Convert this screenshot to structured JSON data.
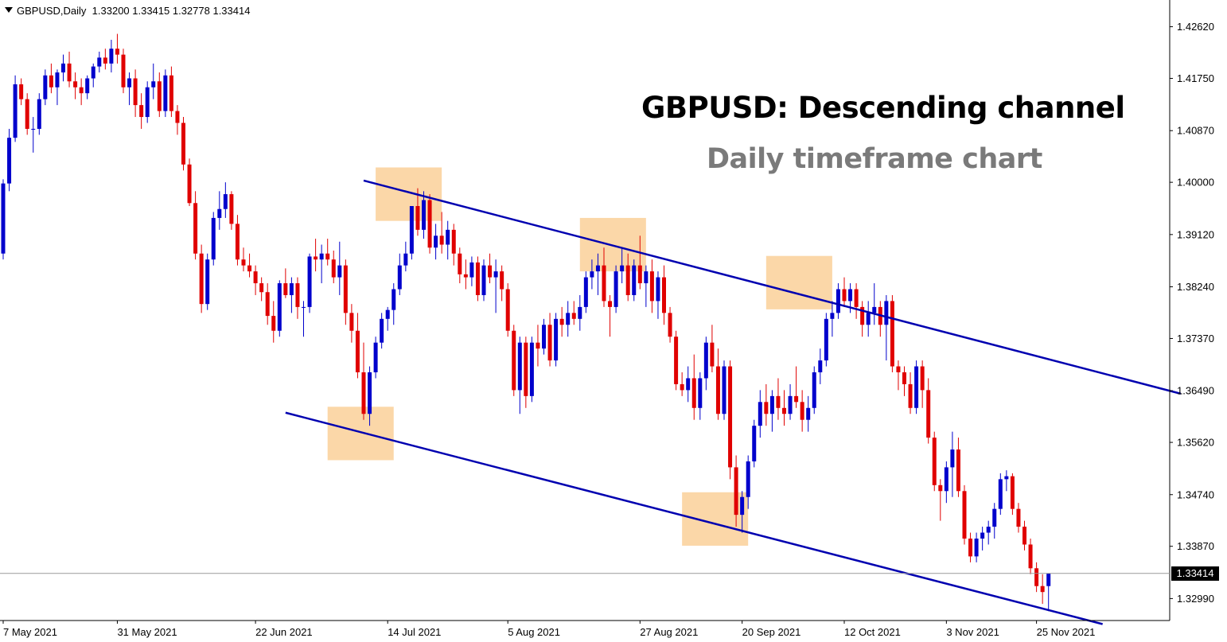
{
  "header": {
    "dropdown_icon": "triangle-down-icon",
    "symbol": "GBPUSD,Daily",
    "ohlc": "1.33200 1.33415 1.32778 1.33414"
  },
  "annotation": {
    "title": "GBPUSD: Descending channel",
    "subtitle": "Daily timeframe chart"
  },
  "current_price_label": "1.33414",
  "colors": {
    "bull": "#0000cc",
    "bear": "#e00000",
    "channel": "#0000b0",
    "highlight": "#fbd7a8",
    "axis": "#000000"
  },
  "chart_data": {
    "type": "candlestick",
    "symbol": "GBPUSD",
    "timeframe": "Daily",
    "title": "GBPUSD: Descending channel",
    "subtitle": "Daily timeframe chart",
    "ylim": [
      1.3262,
      1.4307
    ],
    "y_ticks": [
      "1.42620",
      "1.41750",
      "1.40870",
      "1.40000",
      "1.39120",
      "1.38240",
      "1.37370",
      "1.36490",
      "1.35620",
      "1.34740",
      "1.33870",
      "1.32990"
    ],
    "x_ticks": [
      {
        "index": 0,
        "label": "7 May 2021"
      },
      {
        "index": 19,
        "label": "31 May 2021"
      },
      {
        "index": 42,
        "label": "22 Jun 2021"
      },
      {
        "index": 64,
        "label": "14 Jul 2021"
      },
      {
        "index": 84,
        "label": "5 Aug 2021"
      },
      {
        "index": 106,
        "label": "27 Aug 2021"
      },
      {
        "index": 123,
        "label": "20 Sep 2021"
      },
      {
        "index": 140,
        "label": "12 Oct 2021"
      },
      {
        "index": 157,
        "label": "3 Nov 2021"
      },
      {
        "index": 172,
        "label": "25 Nov 2021"
      }
    ],
    "candles": [
      [
        1.388,
        1.4005,
        1.387,
        1.3998
      ],
      [
        1.3998,
        1.409,
        1.3985,
        1.4075
      ],
      [
        1.4075,
        1.418,
        1.4068,
        1.4165
      ],
      [
        1.4165,
        1.4175,
        1.413,
        1.414
      ],
      [
        1.414,
        1.415,
        1.408,
        1.409
      ],
      [
        1.409,
        1.411,
        1.405,
        1.409
      ],
      [
        1.409,
        1.415,
        1.408,
        1.414
      ],
      [
        1.414,
        1.419,
        1.413,
        1.418
      ],
      [
        1.418,
        1.42,
        1.415,
        1.416
      ],
      [
        1.416,
        1.419,
        1.413,
        1.4185
      ],
      [
        1.4185,
        1.4215,
        1.417,
        1.42
      ],
      [
        1.42,
        1.422,
        1.416,
        1.417
      ],
      [
        1.417,
        1.4185,
        1.414,
        1.416
      ],
      [
        1.416,
        1.4175,
        1.413,
        1.415
      ],
      [
        1.415,
        1.418,
        1.414,
        1.4175
      ],
      [
        1.4175,
        1.42,
        1.416,
        1.4195
      ],
      [
        1.4195,
        1.422,
        1.4185,
        1.421
      ],
      [
        1.421,
        1.4225,
        1.419,
        1.42
      ],
      [
        1.42,
        1.424,
        1.4185,
        1.4225
      ],
      [
        1.4225,
        1.425,
        1.42,
        1.4215
      ],
      [
        1.4215,
        1.4225,
        1.415,
        1.416
      ],
      [
        1.416,
        1.4185,
        1.413,
        1.4175
      ],
      [
        1.4175,
        1.419,
        1.411,
        1.413
      ],
      [
        1.413,
        1.415,
        1.409,
        1.411
      ],
      [
        1.411,
        1.417,
        1.41,
        1.416
      ],
      [
        1.416,
        1.42,
        1.414,
        1.417
      ],
      [
        1.417,
        1.4185,
        1.411,
        1.412
      ],
      [
        1.412,
        1.419,
        1.411,
        1.418
      ],
      [
        1.418,
        1.4195,
        1.411,
        1.412
      ],
      [
        1.412,
        1.413,
        1.408,
        1.41
      ],
      [
        1.41,
        1.411,
        1.402,
        1.403
      ],
      [
        1.403,
        1.404,
        1.396,
        1.3965
      ],
      [
        1.3965,
        1.3985,
        1.387,
        1.388
      ],
      [
        1.388,
        1.3895,
        1.378,
        1.3795
      ],
      [
        1.3795,
        1.388,
        1.3785,
        1.387
      ],
      [
        1.387,
        1.395,
        1.386,
        1.394
      ],
      [
        1.394,
        1.3985,
        1.392,
        1.3955
      ],
      [
        1.3955,
        1.4,
        1.394,
        1.398
      ],
      [
        1.398,
        1.3985,
        1.392,
        1.393
      ],
      [
        1.393,
        1.3945,
        1.386,
        1.387
      ],
      [
        1.387,
        1.389,
        1.385,
        1.386
      ],
      [
        1.386,
        1.388,
        1.384,
        1.385
      ],
      [
        1.385,
        1.386,
        1.381,
        1.383
      ],
      [
        1.383,
        1.384,
        1.38,
        1.3815
      ],
      [
        1.3815,
        1.383,
        1.376,
        1.3775
      ],
      [
        1.3775,
        1.38,
        1.373,
        1.375
      ],
      [
        1.375,
        1.3835,
        1.374,
        1.383
      ],
      [
        1.383,
        1.3855,
        1.3805,
        1.381
      ],
      [
        1.381,
        1.384,
        1.378,
        1.383
      ],
      [
        1.383,
        1.384,
        1.377,
        1.379
      ],
      [
        1.379,
        1.38,
        1.374,
        1.379
      ],
      [
        1.379,
        1.388,
        1.378,
        1.3875
      ],
      [
        1.3875,
        1.3905,
        1.385,
        1.387
      ],
      [
        1.387,
        1.3895,
        1.383,
        1.388
      ],
      [
        1.388,
        1.3905,
        1.386,
        1.387
      ],
      [
        1.387,
        1.3885,
        1.383,
        1.384
      ],
      [
        1.384,
        1.39,
        1.381,
        1.386
      ],
      [
        1.386,
        1.387,
        1.376,
        1.378
      ],
      [
        1.378,
        1.3795,
        1.373,
        1.375
      ],
      [
        1.375,
        1.378,
        1.367,
        1.368
      ],
      [
        1.368,
        1.373,
        1.36,
        1.361
      ],
      [
        1.361,
        1.369,
        1.359,
        1.368
      ],
      [
        1.368,
        1.374,
        1.367,
        1.373
      ],
      [
        1.373,
        1.378,
        1.372,
        1.377
      ],
      [
        1.377,
        1.379,
        1.375,
        1.3785
      ],
      [
        1.3785,
        1.383,
        1.376,
        1.382
      ],
      [
        1.382,
        1.388,
        1.381,
        1.386
      ],
      [
        1.386,
        1.39,
        1.385,
        1.388
      ],
      [
        1.388,
        1.396,
        1.387,
        1.396
      ],
      [
        1.396,
        1.399,
        1.391,
        1.392
      ],
      [
        1.392,
        1.3985,
        1.3905,
        1.397
      ],
      [
        1.397,
        1.398,
        1.388,
        1.389
      ],
      [
        1.389,
        1.393,
        1.387,
        1.391
      ],
      [
        1.391,
        1.395,
        1.388,
        1.3895
      ],
      [
        1.3895,
        1.3935,
        1.387,
        1.392
      ],
      [
        1.392,
        1.393,
        1.386,
        1.388
      ],
      [
        1.388,
        1.389,
        1.383,
        1.3845
      ],
      [
        1.3845,
        1.387,
        1.382,
        1.384
      ],
      [
        1.384,
        1.3875,
        1.3825,
        1.3865
      ],
      [
        1.3865,
        1.3875,
        1.38,
        1.381
      ],
      [
        1.381,
        1.387,
        1.38,
        1.386
      ],
      [
        1.386,
        1.388,
        1.383,
        1.384
      ],
      [
        1.384,
        1.387,
        1.378,
        1.385
      ],
      [
        1.385,
        1.386,
        1.38,
        1.382
      ],
      [
        1.382,
        1.383,
        1.374,
        1.375
      ],
      [
        1.375,
        1.376,
        1.364,
        1.365
      ],
      [
        1.365,
        1.374,
        1.361,
        1.373
      ],
      [
        1.373,
        1.374,
        1.362,
        1.364
      ],
      [
        1.364,
        1.374,
        1.363,
        1.373
      ],
      [
        1.373,
        1.376,
        1.369,
        1.372
      ],
      [
        1.372,
        1.377,
        1.371,
        1.376
      ],
      [
        1.376,
        1.378,
        1.369,
        1.37
      ],
      [
        1.37,
        1.378,
        1.369,
        1.377
      ],
      [
        1.377,
        1.379,
        1.374,
        1.376
      ],
      [
        1.376,
        1.38,
        1.374,
        1.378
      ],
      [
        1.378,
        1.38,
        1.376,
        1.377
      ],
      [
        1.377,
        1.381,
        1.375,
        1.379
      ],
      [
        1.379,
        1.385,
        1.378,
        1.384
      ],
      [
        1.384,
        1.387,
        1.382,
        1.385
      ],
      [
        1.385,
        1.388,
        1.381,
        1.386
      ],
      [
        1.386,
        1.389,
        1.379,
        1.38
      ],
      [
        1.38,
        1.381,
        1.374,
        1.379
      ],
      [
        1.379,
        1.386,
        1.378,
        1.385
      ],
      [
        1.385,
        1.389,
        1.383,
        1.386
      ],
      [
        1.386,
        1.388,
        1.38,
        1.381
      ],
      [
        1.381,
        1.387,
        1.38,
        1.386
      ],
      [
        1.386,
        1.391,
        1.382,
        1.383
      ],
      [
        1.383,
        1.386,
        1.379,
        1.385
      ],
      [
        1.385,
        1.387,
        1.378,
        1.38
      ],
      [
        1.38,
        1.385,
        1.377,
        1.384
      ],
      [
        1.384,
        1.386,
        1.376,
        1.378
      ],
      [
        1.378,
        1.379,
        1.373,
        1.374
      ],
      [
        1.374,
        1.375,
        1.365,
        1.366
      ],
      [
        1.366,
        1.368,
        1.364,
        1.365
      ],
      [
        1.365,
        1.369,
        1.363,
        1.367
      ],
      [
        1.367,
        1.371,
        1.36,
        1.362
      ],
      [
        1.362,
        1.368,
        1.36,
        1.367
      ],
      [
        1.367,
        1.374,
        1.365,
        1.373
      ],
      [
        1.373,
        1.376,
        1.368,
        1.369
      ],
      [
        1.369,
        1.372,
        1.36,
        1.361
      ],
      [
        1.361,
        1.37,
        1.36,
        1.369
      ],
      [
        1.369,
        1.37,
        1.35,
        1.352
      ],
      [
        1.352,
        1.354,
        1.342,
        1.344
      ],
      [
        1.344,
        1.348,
        1.341,
        1.347
      ],
      [
        1.347,
        1.354,
        1.345,
        1.353
      ],
      [
        1.353,
        1.36,
        1.352,
        1.359
      ],
      [
        1.359,
        1.365,
        1.357,
        1.363
      ],
      [
        1.363,
        1.366,
        1.359,
        1.361
      ],
      [
        1.361,
        1.365,
        1.358,
        1.364
      ],
      [
        1.364,
        1.367,
        1.36,
        1.362
      ],
      [
        1.362,
        1.365,
        1.359,
        1.361
      ],
      [
        1.361,
        1.366,
        1.36,
        1.364
      ],
      [
        1.364,
        1.369,
        1.362,
        1.363
      ],
      [
        1.363,
        1.365,
        1.358,
        1.36
      ],
      [
        1.36,
        1.364,
        1.358,
        1.362
      ],
      [
        1.362,
        1.369,
        1.361,
        1.368
      ],
      [
        1.368,
        1.372,
        1.366,
        1.37
      ],
      [
        1.37,
        1.378,
        1.369,
        1.377
      ],
      [
        1.377,
        1.38,
        1.374,
        1.378
      ],
      [
        1.378,
        1.383,
        1.377,
        1.382
      ],
      [
        1.382,
        1.384,
        1.379,
        1.38
      ],
      [
        1.38,
        1.383,
        1.378,
        1.382
      ],
      [
        1.382,
        1.383,
        1.377,
        1.379
      ],
      [
        1.379,
        1.38,
        1.374,
        1.376
      ],
      [
        1.376,
        1.38,
        1.374,
        1.378
      ],
      [
        1.378,
        1.383,
        1.376,
        1.379
      ],
      [
        1.379,
        1.38,
        1.374,
        1.376
      ],
      [
        1.376,
        1.381,
        1.37,
        1.38
      ],
      [
        1.38,
        1.381,
        1.368,
        1.369
      ],
      [
        1.369,
        1.37,
        1.365,
        1.368
      ],
      [
        1.368,
        1.369,
        1.364,
        1.366
      ],
      [
        1.366,
        1.368,
        1.361,
        1.362
      ],
      [
        1.362,
        1.37,
        1.361,
        1.369
      ],
      [
        1.369,
        1.37,
        1.362,
        1.365
      ],
      [
        1.365,
        1.367,
        1.356,
        1.357
      ],
      [
        1.357,
        1.358,
        1.348,
        1.349
      ],
      [
        1.349,
        1.35,
        1.343,
        1.348
      ],
      [
        1.348,
        1.353,
        1.346,
        1.352
      ],
      [
        1.352,
        1.358,
        1.347,
        1.355
      ],
      [
        1.355,
        1.357,
        1.347,
        1.348
      ],
      [
        1.348,
        1.349,
        1.339,
        1.34
      ],
      [
        1.34,
        1.341,
        1.336,
        1.337
      ],
      [
        1.337,
        1.341,
        1.336,
        1.34
      ],
      [
        1.34,
        1.342,
        1.338,
        1.341
      ],
      [
        1.341,
        1.343,
        1.339,
        1.342
      ],
      [
        1.342,
        1.346,
        1.34,
        1.345
      ],
      [
        1.345,
        1.351,
        1.344,
        1.35
      ],
      [
        1.35,
        1.3515,
        1.348,
        1.3505
      ],
      [
        1.3505,
        1.351,
        1.344,
        1.345
      ],
      [
        1.345,
        1.346,
        1.341,
        1.342
      ],
      [
        1.342,
        1.343,
        1.338,
        1.339
      ],
      [
        1.339,
        1.34,
        1.334,
        1.335
      ],
      [
        1.335,
        1.336,
        1.331,
        1.332
      ],
      [
        1.332,
        1.334,
        1.329,
        1.331
      ],
      [
        1.332,
        1.33415,
        1.32778,
        1.33414
      ]
    ],
    "channel_lines": [
      {
        "name": "upper",
        "points": [
          [
            60,
            1.4003
          ],
          [
            196,
            1.3644
          ]
        ]
      },
      {
        "name": "lower",
        "points": [
          [
            47,
            1.3612
          ],
          [
            183,
            1.3256
          ]
        ]
      }
    ],
    "highlight_zones": [
      {
        "x": [
          62,
          73
        ],
        "y": [
          1.3935,
          1.4025
        ]
      },
      {
        "x": [
          96,
          107
        ],
        "y": [
          1.385,
          1.394
        ]
      },
      {
        "x": [
          127,
          138
        ],
        "y": [
          1.3786,
          1.3876
        ]
      },
      {
        "x": [
          54,
          65
        ],
        "y": [
          1.3532,
          1.3622
        ]
      },
      {
        "x": [
          113,
          124
        ],
        "y": [
          1.3388,
          1.3478
        ]
      }
    ],
    "current_price": 1.33414
  }
}
